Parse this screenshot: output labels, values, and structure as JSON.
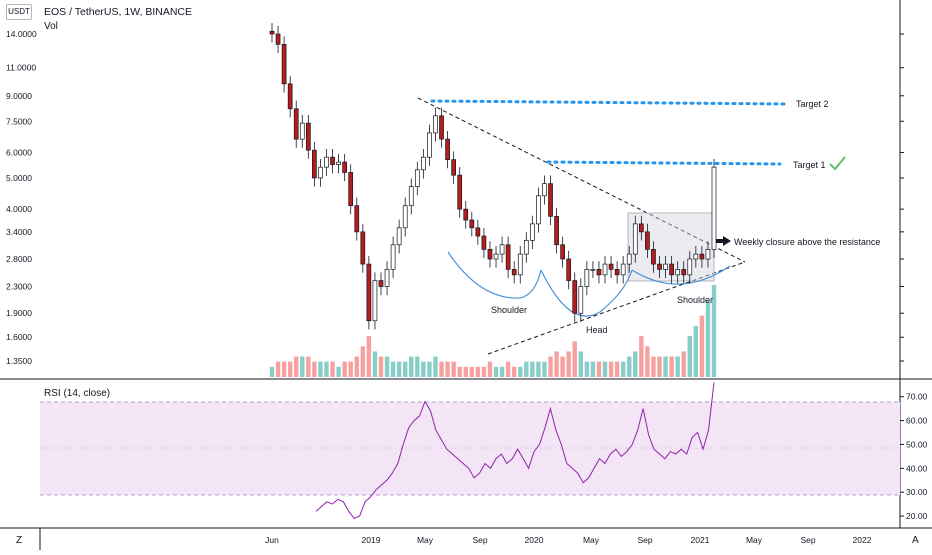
{
  "header": {
    "currency_button": "USDT",
    "title": "EOS / TetherUS, 1W, BINANCE",
    "volume_label": "Vol",
    "rsi_label": "RSI (14, close)"
  },
  "corner": {
    "left": "Z",
    "right": "A"
  },
  "colors": {
    "up": "#26a69a",
    "down": "#ef5350",
    "candle_body": "#131722",
    "target_line": "#2196f3",
    "pattern_curve": "#4a90d9",
    "rsi_line": "#8e24aa",
    "rsi_band": "#e1bee7",
    "check": "#66bb6a"
  },
  "chart_data": [
    {
      "type": "candlestick",
      "title": "EOS / TetherUS, 1W, BINANCE",
      "y_scale": "log",
      "y_ticks": [
        "14.0000",
        "11.0000",
        "9.0000",
        "7.5000",
        "6.0000",
        "5.0000",
        "4.0000",
        "3.4000",
        "2.8000",
        "2.3000",
        "1.9000",
        "1.6000",
        "1.3500"
      ],
      "x_ticks": [
        "Jun",
        "2019",
        "May",
        "Sep",
        "2020",
        "May",
        "Sep",
        "2021",
        "May",
        "Sep",
        "2022"
      ],
      "close_series": [
        14.0,
        13.0,
        9.8,
        8.2,
        6.6,
        7.4,
        6.1,
        5.0,
        5.4,
        5.8,
        5.5,
        5.6,
        5.2,
        4.1,
        3.4,
        2.7,
        1.8,
        2.4,
        2.3,
        2.6,
        3.1,
        3.5,
        4.1,
        4.7,
        5.3,
        5.8,
        6.9,
        7.8,
        6.6,
        5.7,
        5.1,
        4.0,
        3.7,
        3.5,
        3.3,
        3.0,
        2.8,
        2.9,
        3.1,
        2.6,
        2.5,
        2.9,
        3.2,
        3.6,
        4.4,
        4.8,
        3.8,
        3.1,
        2.8,
        2.4,
        1.9,
        2.3,
        2.6,
        2.6,
        2.5,
        2.7,
        2.6,
        2.5,
        2.7,
        2.9,
        3.6,
        3.4,
        3.0,
        2.7,
        2.6,
        2.7,
        2.5,
        2.6,
        2.5,
        2.8,
        2.9,
        2.8,
        3.0,
        5.4
      ],
      "annotations": [
        {
          "text": "Target 2",
          "value": 8.5
        },
        {
          "text": "Target 1",
          "value": 5.55
        },
        {
          "text": "Weekly closure above the resistance"
        },
        {
          "text": "Shoulder"
        },
        {
          "text": "Head"
        },
        {
          "text": "Shoulder"
        }
      ],
      "volume_series": [
        2,
        3,
        3,
        3,
        4,
        4,
        4,
        3,
        3,
        3,
        3,
        2,
        3,
        3,
        4,
        6,
        8,
        5,
        4,
        4,
        3,
        3,
        3,
        4,
        4,
        3,
        3,
        4,
        3,
        3,
        3,
        2,
        2,
        2,
        2,
        2,
        3,
        2,
        2,
        3,
        2,
        2,
        3,
        3,
        3,
        3,
        4,
        5,
        4,
        5,
        7,
        5,
        3,
        3,
        3,
        3,
        3,
        3,
        3,
        4,
        5,
        8,
        6,
        4,
        4,
        4,
        4,
        4,
        5,
        8,
        10,
        12,
        15,
        18
      ]
    },
    {
      "type": "line",
      "title": "RSI (14, close)",
      "y_ticks": [
        "70.00",
        "60.00",
        "50.00",
        "40.00",
        "30.00",
        "20.00"
      ],
      "band": [
        30,
        70
      ],
      "ylim": [
        15,
        77
      ],
      "values": [
        22,
        24,
        26,
        25,
        27,
        26,
        22,
        19,
        20,
        26,
        28,
        31,
        33,
        35,
        38,
        42,
        50,
        57,
        60,
        62,
        68,
        64,
        56,
        52,
        48,
        46,
        44,
        42,
        40,
        36,
        38,
        42,
        40,
        44,
        46,
        42,
        44,
        48,
        44,
        40,
        47,
        50,
        57,
        65,
        56,
        50,
        42,
        40,
        38,
        34,
        36,
        40,
        44,
        42,
        46,
        48,
        45,
        47,
        50,
        56,
        65,
        54,
        48,
        46,
        44,
        47,
        46,
        48,
        46,
        53,
        55,
        48,
        56,
        76
      ]
    }
  ]
}
